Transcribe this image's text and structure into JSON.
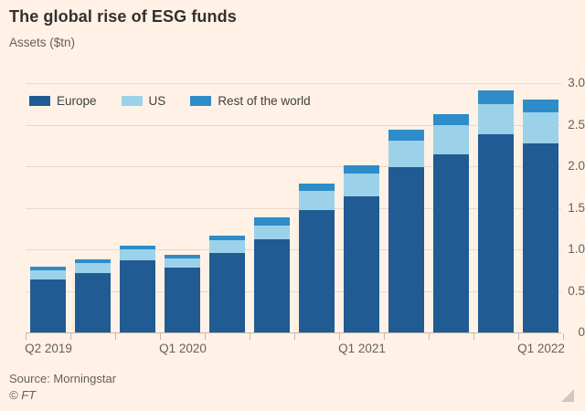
{
  "title": "The global rise of ESG funds",
  "subtitle": "Assets ($tn)",
  "source": "Source: Morningstar",
  "copyright": "© FT",
  "colors": {
    "background": "#fff1e5",
    "europe": "#205b93",
    "us": "#9bd2e9",
    "row": "#2e8cc9",
    "title_text": "#33302e",
    "muted_text": "#66605c",
    "grid": "#e7d9ca",
    "axis": "#c7b8a9"
  },
  "legend": {
    "items": [
      {
        "label": "Europe",
        "color_key": "europe"
      },
      {
        "label": "US",
        "color_key": "us"
      },
      {
        "label": "Rest of the world",
        "color_key": "row"
      }
    ]
  },
  "chart_data": {
    "type": "bar",
    "stacked": true,
    "title": "The global rise of ESG funds",
    "ylabel": "Assets ($tn)",
    "categories": [
      "Q2 2019",
      "Q3 2019",
      "Q4 2019",
      "Q1 2020",
      "Q2 2020",
      "Q3 2020",
      "Q4 2020",
      "Q1 2021",
      "Q2 2021",
      "Q3 2021",
      "Q4 2021",
      "Q1 2022"
    ],
    "series": [
      {
        "name": "Europe",
        "color_key": "europe",
        "values": [
          0.64,
          0.71,
          0.87,
          0.78,
          0.96,
          1.12,
          1.47,
          1.64,
          1.99,
          2.14,
          2.38,
          2.28
        ]
      },
      {
        "name": "US",
        "color_key": "us",
        "values": [
          0.11,
          0.12,
          0.13,
          0.11,
          0.15,
          0.17,
          0.23,
          0.27,
          0.32,
          0.36,
          0.37,
          0.37
        ]
      },
      {
        "name": "Rest of the world",
        "color_key": "row",
        "values": [
          0.04,
          0.05,
          0.04,
          0.04,
          0.05,
          0.09,
          0.09,
          0.1,
          0.13,
          0.13,
          0.16,
          0.15
        ]
      }
    ],
    "totals": [
      0.79,
      0.88,
      1.04,
      0.93,
      1.16,
      1.38,
      1.79,
      2.01,
      2.44,
      2.63,
      2.91,
      2.8
    ],
    "ylim": [
      0,
      3.0
    ],
    "y_ticks": [
      0,
      0.5,
      1.0,
      1.5,
      2.0,
      2.5,
      3.0
    ],
    "y_tick_labels": [
      "0",
      "0.5",
      "1.0",
      "1.5",
      "2.0",
      "2.5",
      "3.0"
    ],
    "y_axis_side": "right",
    "x_axis_labels": [
      {
        "index": 0,
        "label": "Q2 2019"
      },
      {
        "index": 3,
        "label": "Q1 2020"
      },
      {
        "index": 7,
        "label": "Q1 2021"
      },
      {
        "index": 11,
        "label": "Q1 2022"
      }
    ],
    "grid": true,
    "legend_position": "top-left-inside"
  }
}
